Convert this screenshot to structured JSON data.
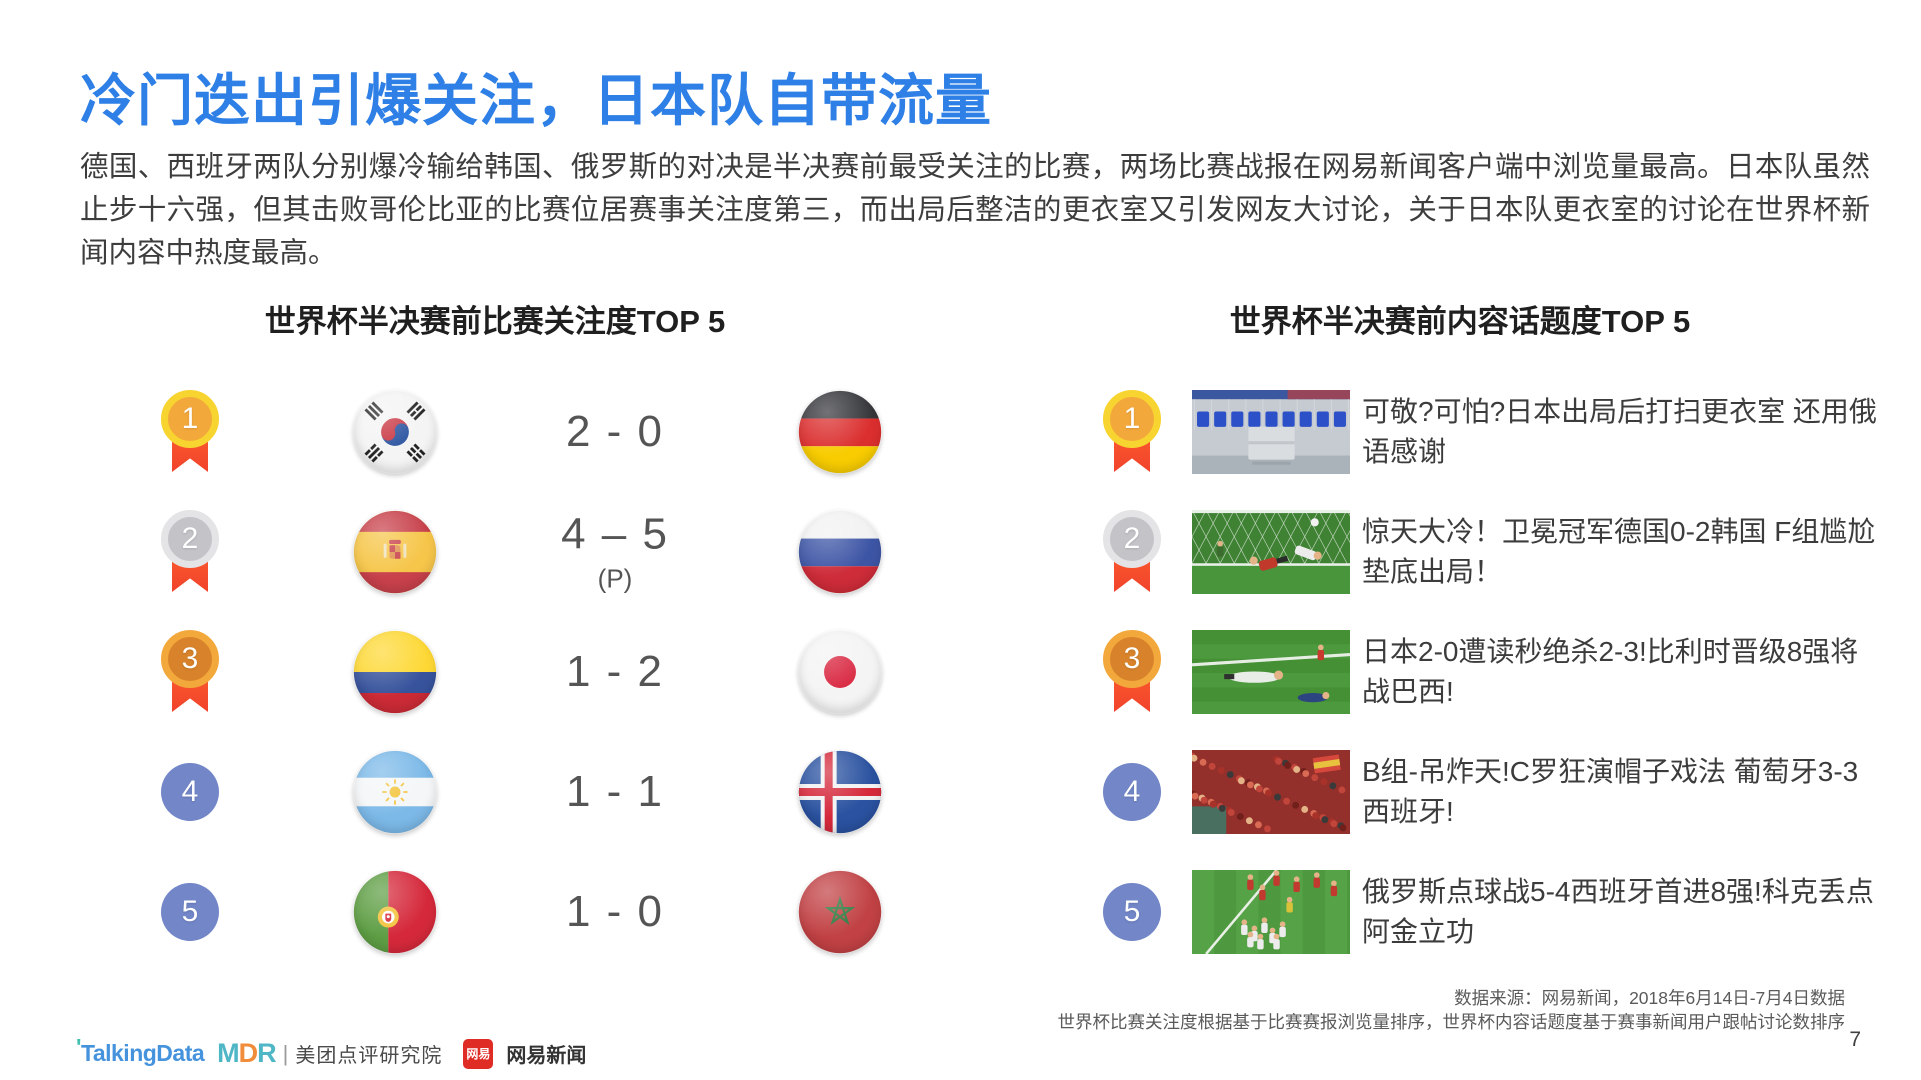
{
  "page": {
    "title": "冷门迭出引爆关注，日本队自带流量",
    "paragraph": "德国、西班牙两队分别爆冷输给韩国、俄罗斯的对决是半决赛前最受关注的比赛，两场比赛战报在网易新闻客户端中浏览量最高。日本队虽然止步十六强，但其击败哥伦比亚的比赛位居赛事关注度第三，而出局后整洁的更衣室又引发网友大讨论，关于日本队更衣室的讨论在世界杯新闻内容中热度最高。",
    "page_number": "7"
  },
  "left_panel": {
    "title": "世界杯半决赛前比赛关注度TOP 5",
    "rows": [
      {
        "rank": "1",
        "medal": "gold",
        "team_left": "south-korea",
        "score": "2 - 0",
        "score_note": "",
        "team_right": "germany"
      },
      {
        "rank": "2",
        "medal": "silver",
        "team_left": "spain",
        "score": "4 – 5",
        "score_note": "(P)",
        "team_right": "russia"
      },
      {
        "rank": "3",
        "medal": "bronze",
        "team_left": "colombia",
        "score": "1 - 2",
        "score_note": "",
        "team_right": "japan"
      },
      {
        "rank": "4",
        "medal": "plain",
        "team_left": "argentina",
        "score": "1 - 1",
        "score_note": "",
        "team_right": "iceland"
      },
      {
        "rank": "5",
        "medal": "plain",
        "team_left": "portugal",
        "score": "1 - 0",
        "score_note": "",
        "team_right": "morocco"
      }
    ]
  },
  "right_panel": {
    "title": "世界杯半决赛前内容话题度TOP 5",
    "rows": [
      {
        "rank": "1",
        "medal": "gold",
        "thumbnail": "japan-locker-room-photo",
        "headline": "可敬?可怕?日本出局后打扫更衣室 还用俄语感谢"
      },
      {
        "rank": "2",
        "medal": "silver",
        "thumbnail": "germany-korea-goal-photo",
        "headline": "惊天大冷！卫冕冠军德国0-2韩国 F组尴尬垫底出局！"
      },
      {
        "rank": "3",
        "medal": "bronze",
        "thumbnail": "japan-belgium-keeper-photo",
        "headline": "日本2-0遭读秒绝杀2-3!比利时晋级8强将战巴西!"
      },
      {
        "rank": "4",
        "medal": "plain",
        "thumbnail": "spain-fans-photo",
        "headline": "B组-吊炸天!C罗狂演帽子戏法 葡萄牙3-3西班牙!"
      },
      {
        "rank": "5",
        "medal": "plain",
        "thumbnail": "russia-celebration-photo",
        "headline": "俄罗斯点球战5-4西班牙首进8强!科克丢点阿金立功"
      }
    ]
  },
  "footer": {
    "source_line1": "数据来源：网易新闻，2018年6月14日-7月4日数据",
    "source_line2": "世界杯比赛关注度根据基于比赛赛报浏览量排序，世界杯内容话题度基于赛事新闻用户跟帖讨论数排序",
    "logos": {
      "talkingdata": "TalkingData",
      "mdr": "MDR",
      "meituan": "美团点评研究院",
      "netease_badge": "网易",
      "netease": "网易新闻"
    }
  },
  "colors": {
    "title_blue": "#2E7FE6",
    "body_text": "#3D3D3D",
    "rank_blue": "#7286C8",
    "ribbon_red": "#F1432B",
    "medal_gold": "#F3A83C",
    "medal_gold_ring": "#F7D42F",
    "medal_silver": "#C3C3C8",
    "medal_bronze": "#D8832B",
    "netease_red": "#DF2D26",
    "talkingdata_blue": "#4593DC",
    "mdr_teal": "#4FB6C6",
    "mdr_orange": "#F08C3A"
  }
}
